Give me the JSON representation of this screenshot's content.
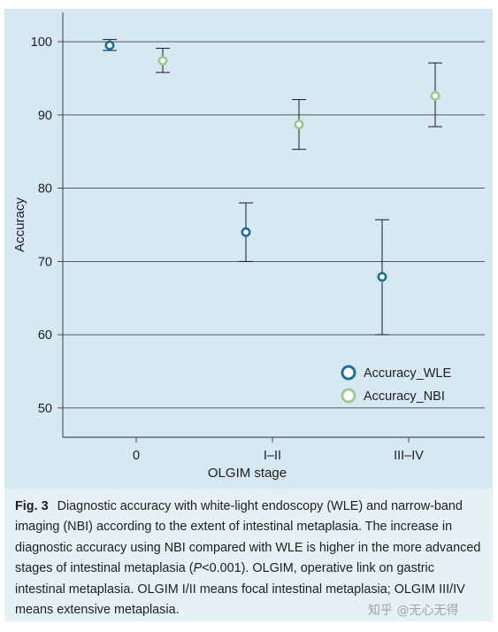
{
  "chart_data": {
    "type": "scatter",
    "xlabel": "OLGIM stage",
    "ylabel": "Accuracy",
    "categories": [
      "0",
      "I–II",
      "III–IV"
    ],
    "ylim": [
      46,
      104
    ],
    "yticks": [
      50,
      60,
      70,
      80,
      90,
      100
    ],
    "grid": true,
    "legend_position": "bottom-right",
    "series": [
      {
        "name": "Accuracy_WLE",
        "color": "#1f6f94",
        "points": [
          {
            "category": "0",
            "value": 99.5,
            "lower": 98.8,
            "upper": 100.3
          },
          {
            "category": "I–II",
            "value": 74.0,
            "lower": 70.0,
            "upper": 78.0
          },
          {
            "category": "III–IV",
            "value": 67.9,
            "lower": 60.0,
            "upper": 75.7
          }
        ]
      },
      {
        "name": "Accuracy_NBI",
        "color": "#9ccb91",
        "points": [
          {
            "category": "0",
            "value": 97.4,
            "lower": 95.8,
            "upper": 99.1
          },
          {
            "category": "I–II",
            "value": 88.7,
            "lower": 85.3,
            "upper": 92.1
          },
          {
            "category": "III–IV",
            "value": 92.6,
            "lower": 88.4,
            "upper": 97.1
          }
        ]
      }
    ]
  },
  "caption": {
    "label": "Fig. 3",
    "text_before_p": "Diagnostic accuracy with white-light endoscopy (WLE) and narrow-band imaging (NBI) according to the extent of intestinal metaplasia. The increase in diagnostic accuracy using NBI compared with WLE is higher in the more advanced stages of intestinal metaplasia (",
    "p_symbol": "P",
    "text_after_p": "<0.001). OLGIM, operative link on gastric intestinal metaplasia. OLGIM I/II means focal intestinal metaplasia; OLGIM III/IV means extensive metaplasia."
  },
  "watermark": "知乎 @无心无得"
}
